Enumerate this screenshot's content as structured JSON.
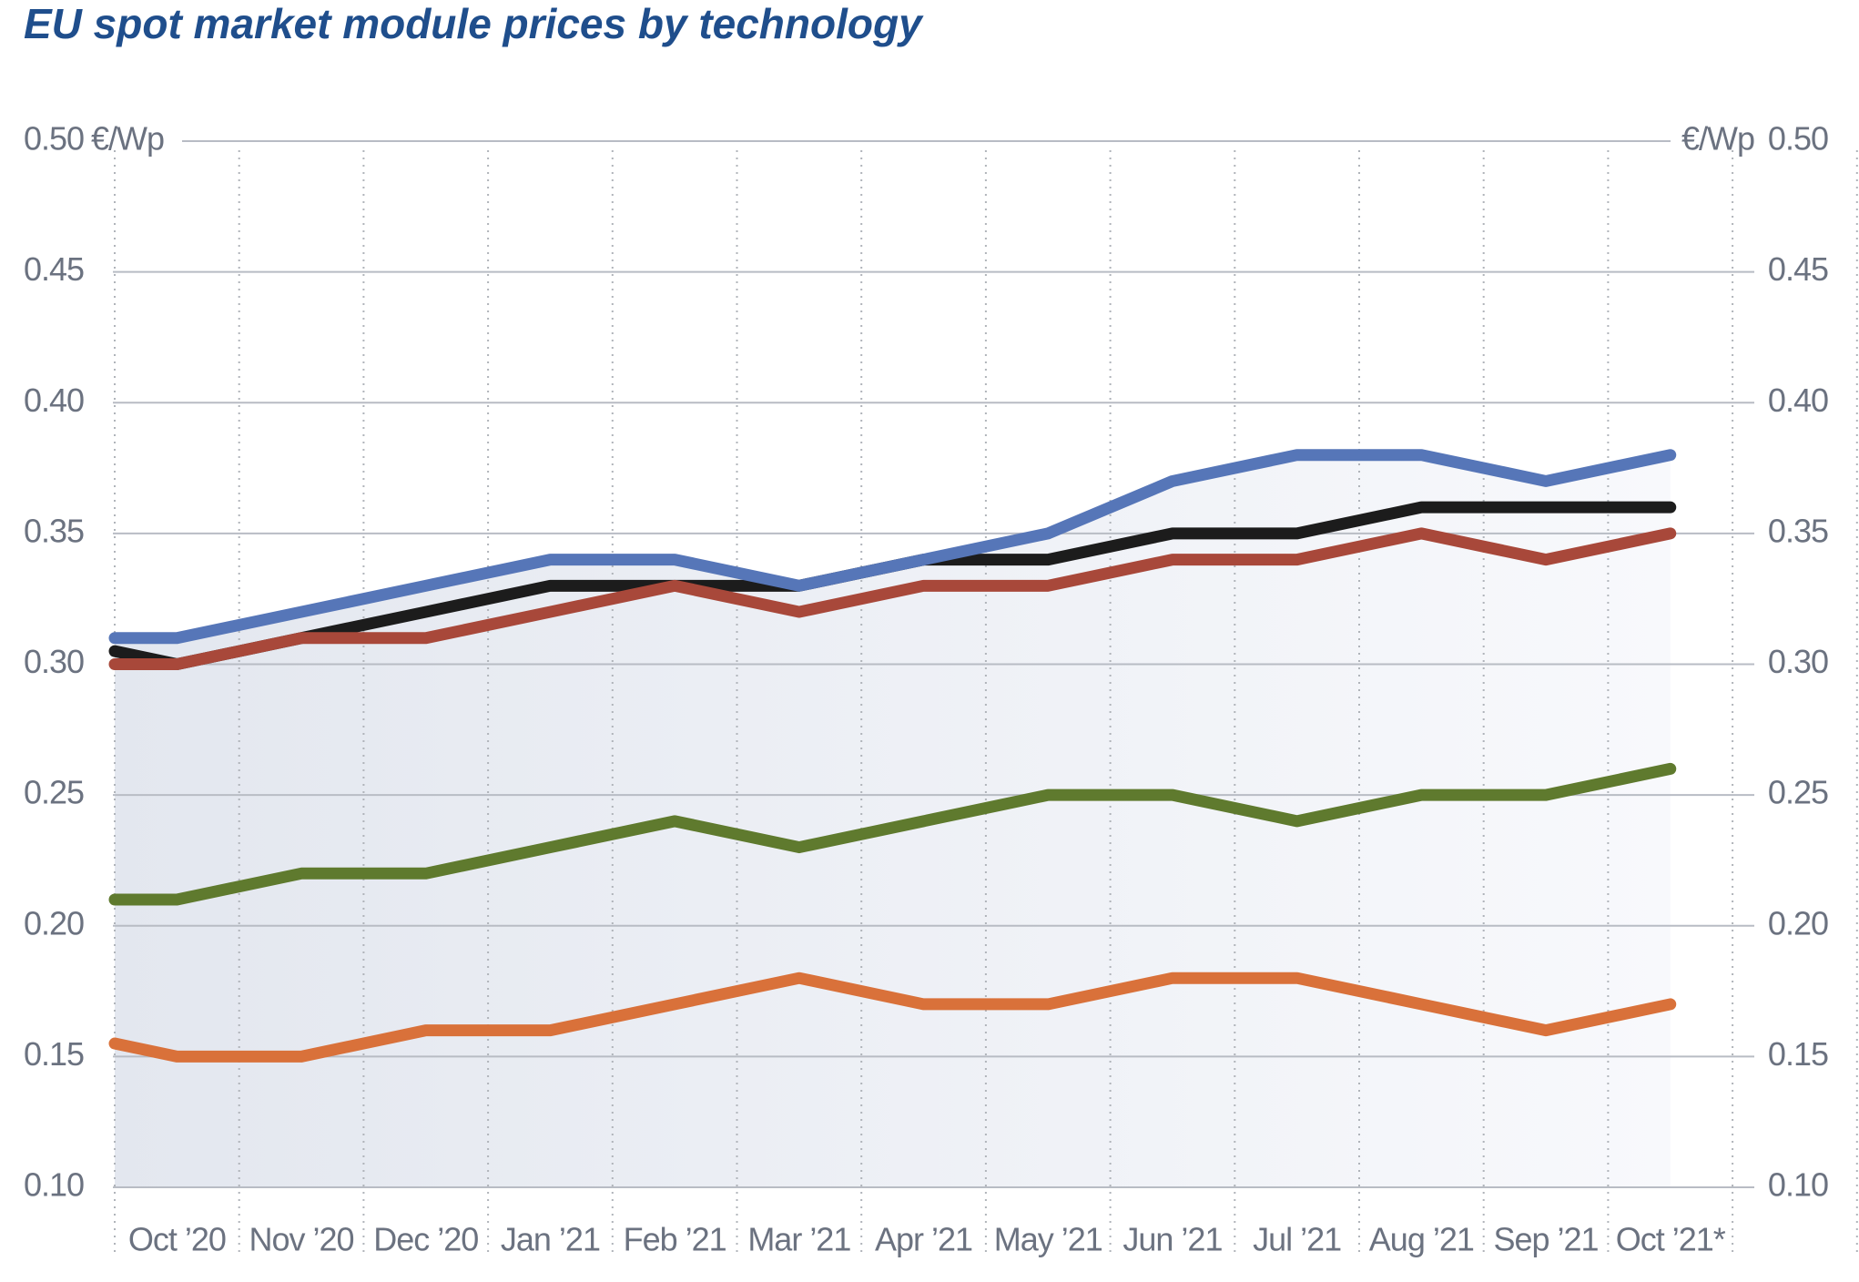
{
  "chart_data": {
    "type": "line",
    "title": "EU spot market module prices  by technology",
    "y_unit": "€/Wp",
    "categories": [
      null,
      "Oct ’20",
      "Nov ’20",
      "Dec ’20",
      "Jan ’21",
      "Feb ’21",
      "Mar ’21",
      "Apr ’21",
      "May ’21",
      "Jun ’21",
      "Jul ’21",
      "Aug ’21",
      "Sep ’21",
      "Oct ’21*"
    ],
    "series": [
      {
        "color": "#d9713a",
        "values": [
          0.155,
          0.15,
          0.15,
          0.16,
          0.16,
          0.17,
          0.18,
          0.17,
          0.17,
          0.18,
          0.18,
          0.17,
          0.16,
          0.17
        ]
      },
      {
        "color": "#5f7a2e",
        "values": [
          0.21,
          0.21,
          0.22,
          0.22,
          0.23,
          0.24,
          0.23,
          0.24,
          0.25,
          0.25,
          0.24,
          0.25,
          0.25,
          0.26
        ]
      },
      {
        "color": "#1c1c1c",
        "values": [
          0.305,
          0.3,
          0.31,
          0.32,
          0.33,
          0.33,
          0.33,
          0.34,
          0.34,
          0.35,
          0.35,
          0.36,
          0.36,
          0.36
        ]
      },
      {
        "color": "#a8483a",
        "values": [
          0.3,
          0.3,
          0.31,
          0.31,
          0.32,
          0.33,
          0.32,
          0.33,
          0.33,
          0.34,
          0.34,
          0.35,
          0.34,
          0.35
        ]
      },
      {
        "color": "#5676b8",
        "values": [
          0.31,
          0.31,
          0.32,
          0.33,
          0.34,
          0.34,
          0.33,
          0.34,
          0.35,
          0.37,
          0.38,
          0.38,
          0.37,
          0.38
        ]
      }
    ],
    "ylim": [
      0.1,
      0.5
    ],
    "yticks": [
      {
        "value": 0.1,
        "label": "0.10"
      },
      {
        "value": 0.15,
        "label": "0.15"
      },
      {
        "value": 0.2,
        "label": "0.20"
      },
      {
        "value": 0.25,
        "label": "0.25"
      },
      {
        "value": 0.3,
        "label": "0.30"
      },
      {
        "value": 0.35,
        "label": "0.35"
      },
      {
        "value": 0.4,
        "label": "0.40"
      },
      {
        "value": 0.45,
        "label": "0.45"
      },
      {
        "value": 0.5,
        "label": "0.50"
      }
    ],
    "grid": true
  }
}
